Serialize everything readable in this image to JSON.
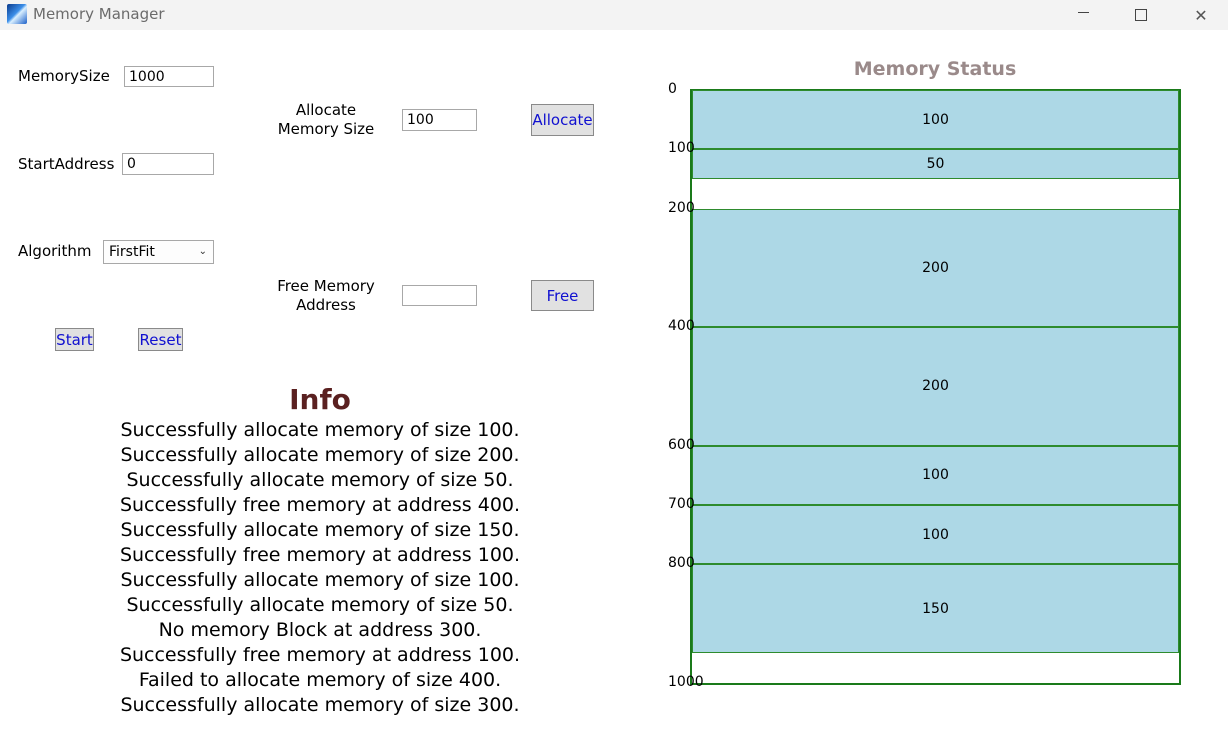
{
  "window": {
    "title": "Memory Manager",
    "min_glyph": "",
    "max_glyph": "",
    "close_glyph": "✕"
  },
  "controls": {
    "memory_size_label": "MemorySize",
    "memory_size_value": "1000",
    "start_address_label": "StartAddress",
    "start_address_value": "0",
    "algorithm_label": "Algorithm",
    "algorithm_value": "FirstFit",
    "allocate_label_line1": "Allocate",
    "allocate_label_line2": "Memory Size",
    "allocate_value": "100",
    "allocate_button": "Allocate",
    "free_label_line1": "Free Memory",
    "free_label_line2": "Address",
    "free_value": "",
    "free_button": "Free",
    "start_button": "Start",
    "reset_button": "Reset"
  },
  "info": {
    "title": "Info",
    "messages": [
      "Successfully allocate memory of size 100.",
      "Successfully allocate memory of size 200.",
      "Successfully allocate memory of size 50.",
      "Successfully free memory at address 400.",
      "Successfully allocate memory of size 150.",
      "Successfully free memory at address 100.",
      "Successfully allocate memory of size 100.",
      "Successfully allocate memory of size 50.",
      "No memory Block at address 300.",
      "Successfully free memory at address 100.",
      "Failed to allocate memory of size 400.",
      "Successfully allocate memory of size 300."
    ]
  },
  "memory_status": {
    "title": "Memory Status",
    "total": 1000,
    "ticks": [
      "0",
      "100",
      "200",
      "400",
      "600",
      "700",
      "800",
      "1000"
    ],
    "blocks": [
      {
        "start": 0,
        "size": 100,
        "label": "100"
      },
      {
        "start": 100,
        "size": 50,
        "label": "50"
      },
      {
        "start": 200,
        "size": 200,
        "label": "200"
      },
      {
        "start": 400,
        "size": 200,
        "label": "200"
      },
      {
        "start": 600,
        "size": 100,
        "label": "100"
      },
      {
        "start": 700,
        "size": 100,
        "label": "100"
      },
      {
        "start": 800,
        "size": 150,
        "label": "150"
      }
    ],
    "colors": {
      "block_fill": "#add8e6",
      "border": "#1a7a1a"
    }
  }
}
